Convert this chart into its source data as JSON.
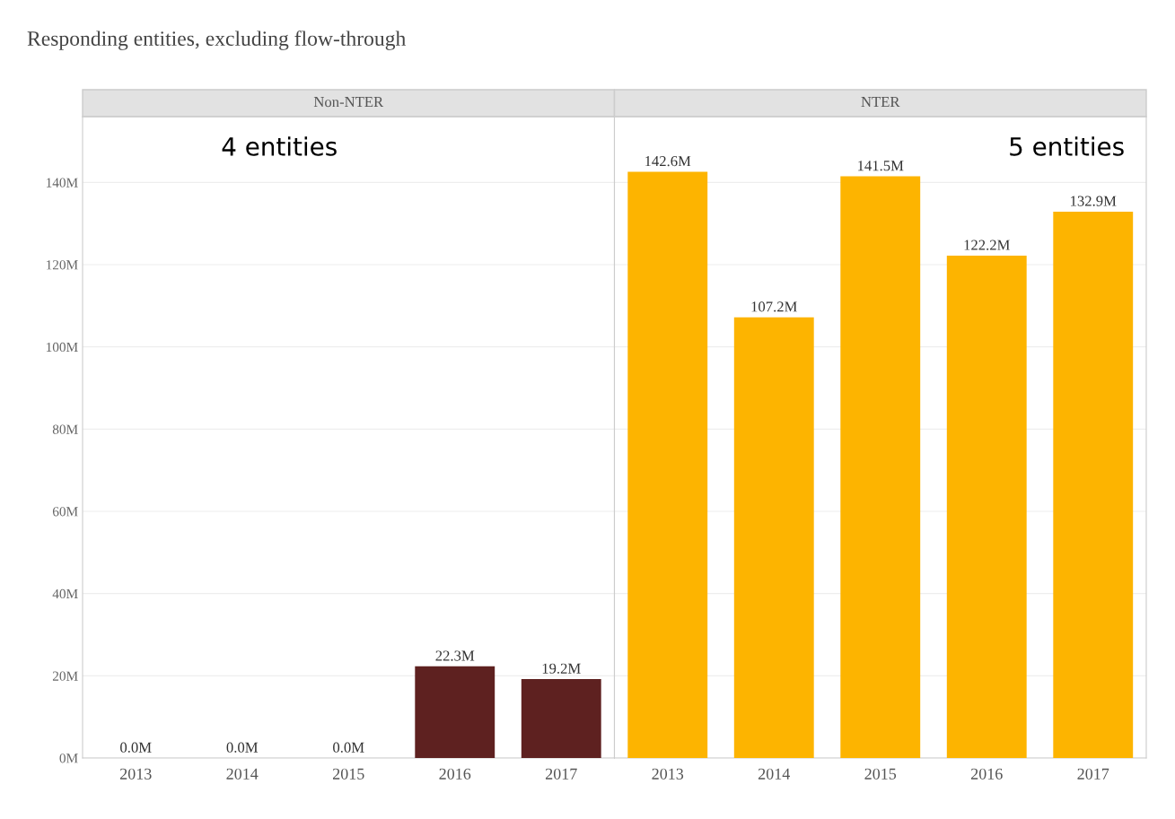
{
  "chart_data": [
    {
      "type": "bar",
      "title": "Responding entities, excluding flow-through",
      "subtitle": "Non-NTER",
      "categories": [
        "2013",
        "2014",
        "2015",
        "2016",
        "2017"
      ],
      "values": [
        0,
        0,
        0,
        22.3,
        19.2
      ],
      "value_labels": [
        "0.0M",
        "0.0M",
        "0.0M",
        "22.3M",
        "19.2M"
      ],
      "color": "#5e2120",
      "ylim": [
        0,
        156
      ],
      "yticks": [
        {
          "value": 0,
          "label": "0M"
        },
        {
          "value": 20,
          "label": "20M"
        },
        {
          "value": 40,
          "label": "40M"
        },
        {
          "value": 60,
          "label": "60M"
        },
        {
          "value": 80,
          "label": "80M"
        },
        {
          "value": 100,
          "label": "100M"
        },
        {
          "value": 120,
          "label": "120M"
        },
        {
          "value": 140,
          "label": "140M"
        }
      ],
      "grid": "y",
      "annotations": [
        "4 entities"
      ]
    },
    {
      "type": "bar",
      "subtitle": "NTER",
      "categories": [
        "2013",
        "2014",
        "2015",
        "2016",
        "2017"
      ],
      "values": [
        142.6,
        107.2,
        141.5,
        122.2,
        132.9
      ],
      "value_labels": [
        "142.6M",
        "107.2M",
        "141.5M",
        "122.2M",
        "132.9M"
      ],
      "color": "#fdb400",
      "ylim": [
        0,
        156
      ],
      "yticks": [
        {
          "value": 0,
          "label": null
        },
        {
          "value": 20,
          "label": null
        },
        {
          "value": 40,
          "label": null
        },
        {
          "value": 60,
          "label": null
        },
        {
          "value": 80,
          "label": null
        },
        {
          "value": 100,
          "label": null
        },
        {
          "value": 120,
          "label": null
        },
        {
          "value": 140,
          "label": null
        }
      ],
      "grid": "y",
      "tick_labels": "x",
      "annotations": [
        "5 entities"
      ]
    }
  ]
}
